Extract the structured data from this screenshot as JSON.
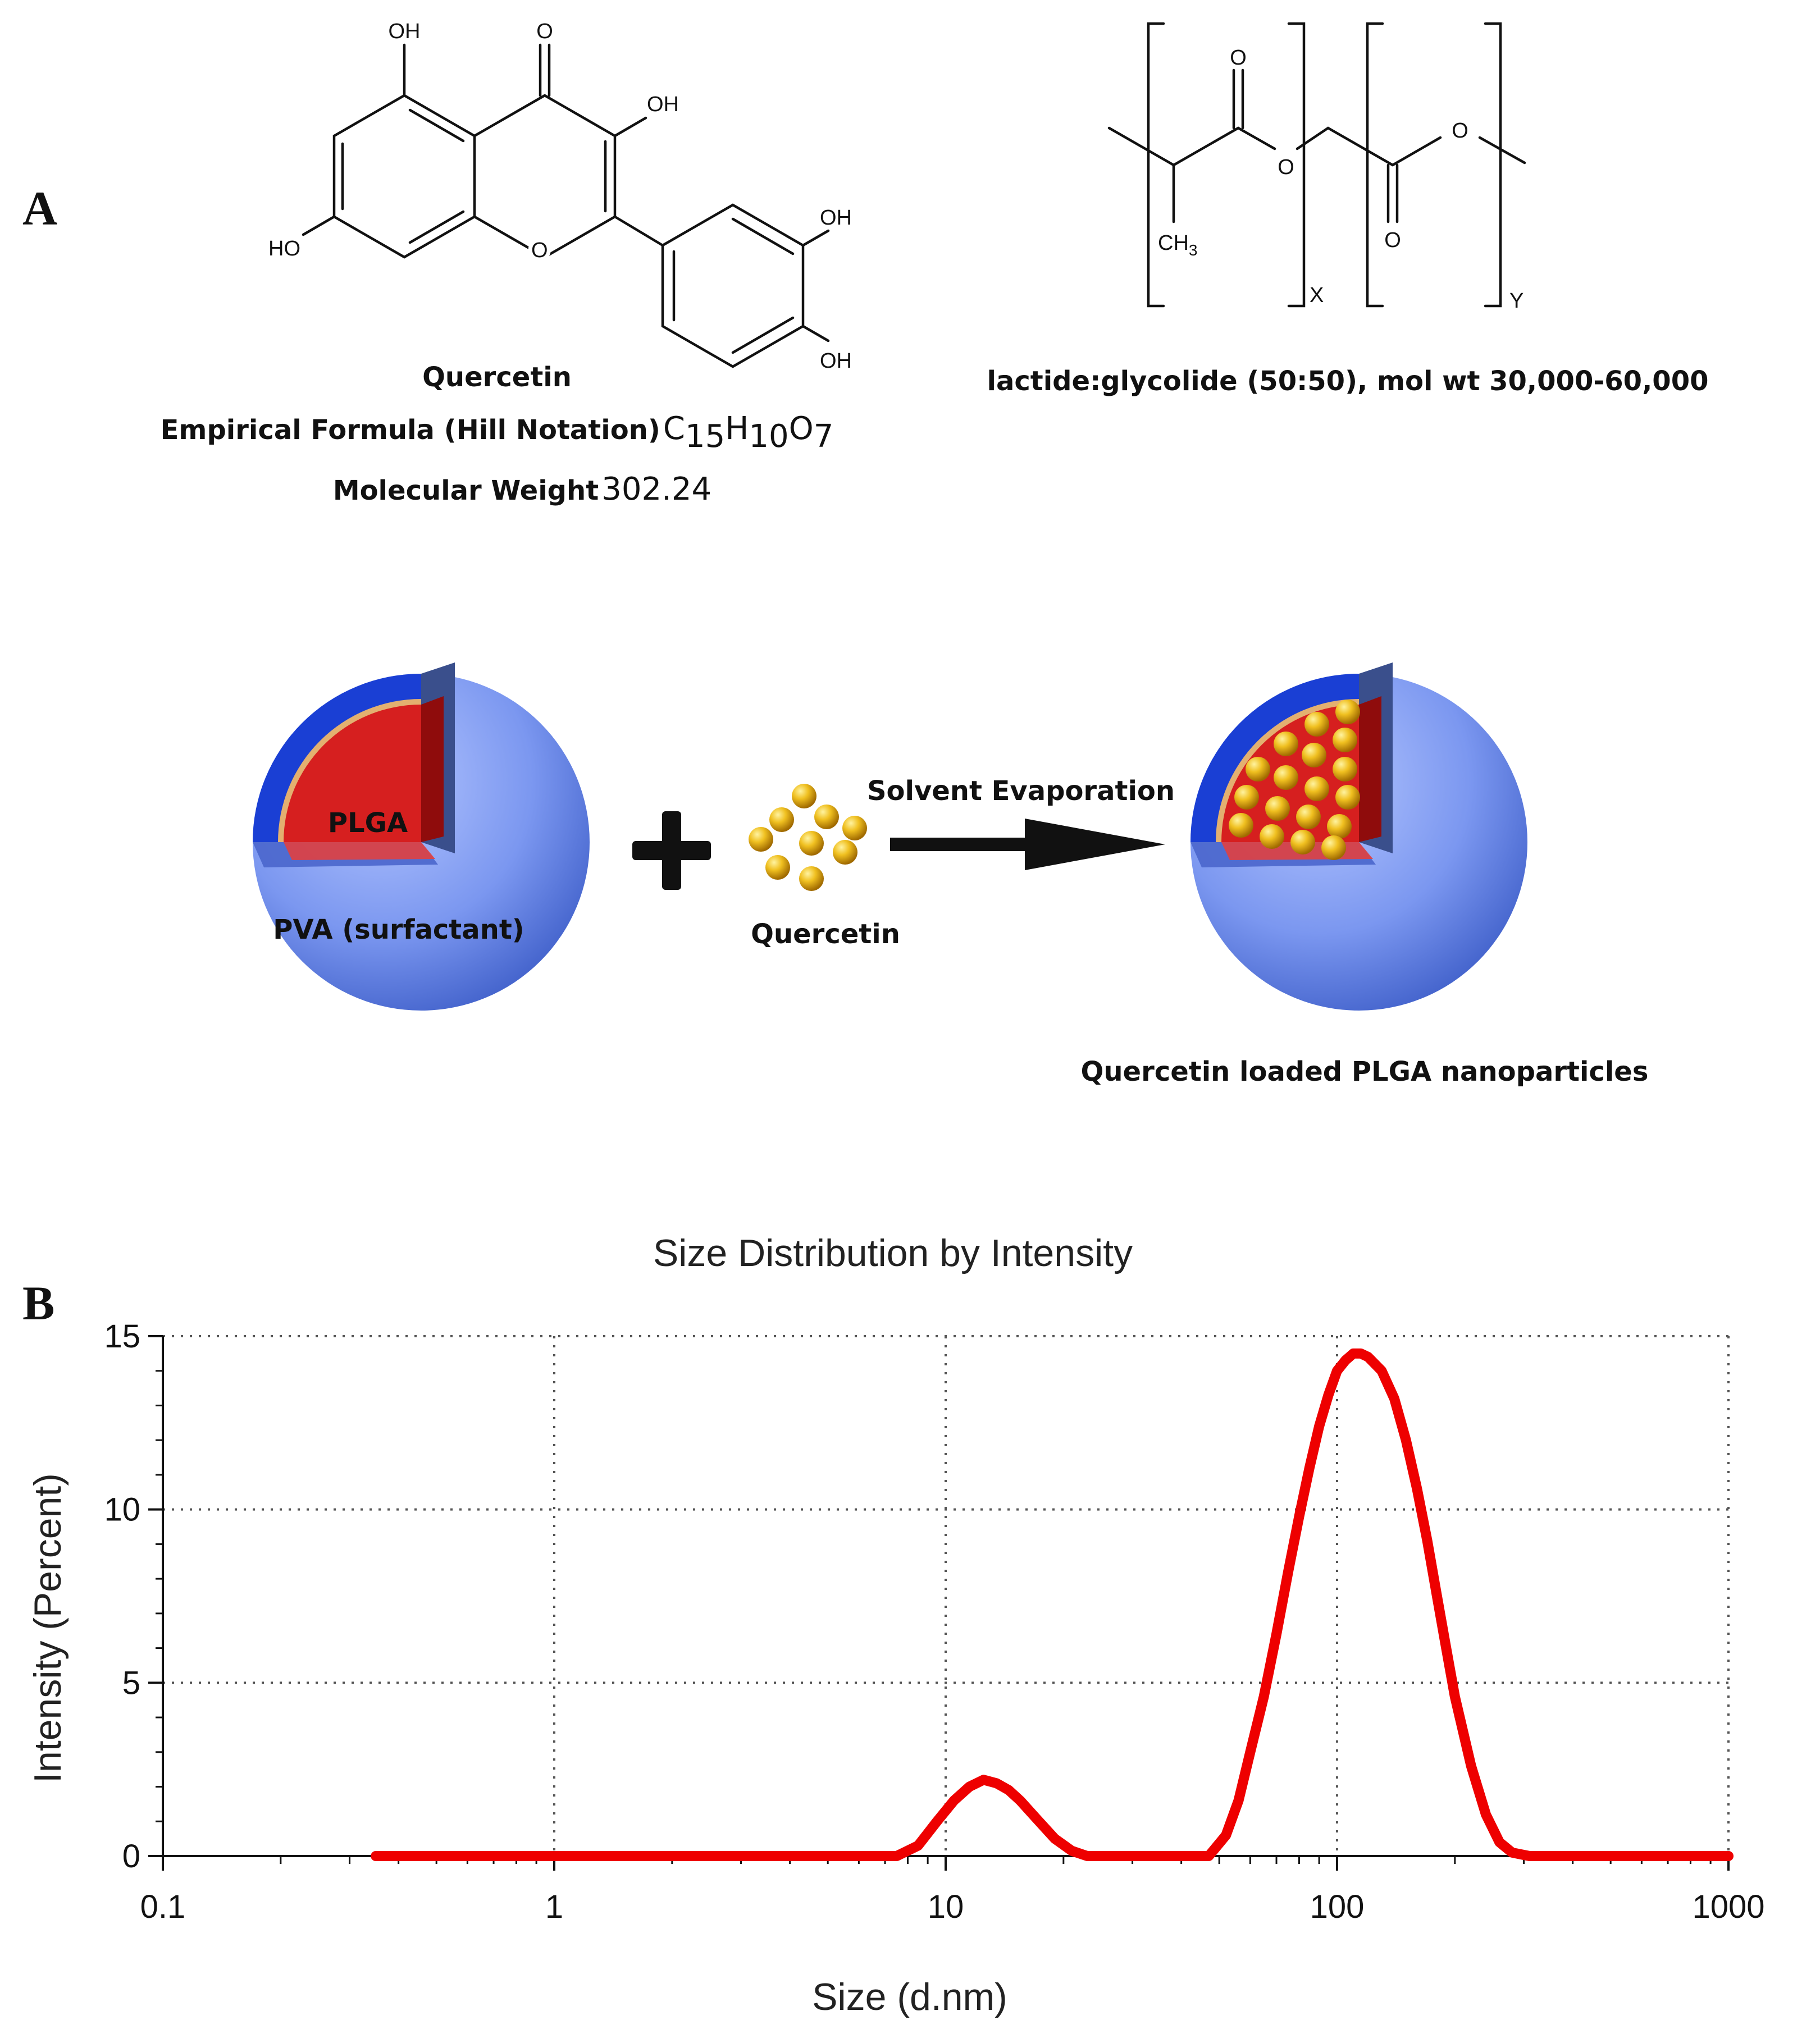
{
  "panel_a": {
    "letter": "A",
    "quercetin": {
      "atoms": {
        "oh_top": "OH",
        "o_keto": "O",
        "oh_c3": "OH",
        "ho_left": "HO",
        "o_ring": "O",
        "oh_right_top": "OH",
        "oh_right_bottom": "OH"
      },
      "name": "Quercetin",
      "formula_label": "Empirical Formula (Hill Notation)",
      "formula": {
        "c": "C",
        "c_n": "15",
        "h": "H",
        "h_n": "10",
        "o": "O",
        "o_n": "7"
      },
      "mw_label": "Molecular Weight",
      "mw_value": "302.24"
    },
    "plga": {
      "atoms": {
        "o_carbonyl_1": "O",
        "o_ester_1": "O",
        "o_carbonyl_2": "O",
        "o_ester_2": "O",
        "ch3": "CH",
        "ch3_n": "3",
        "sub_x": "X",
        "sub_y": "Y"
      },
      "caption": "lactide:glycolide (50:50), mol wt 30,000-60,000"
    },
    "scheme": {
      "core_label": "PLGA",
      "shell_label": "PVA (surfactant)",
      "drug_label": "Quercetin",
      "arrow_label": "Solvent Evaporation",
      "product_label": "Quercetin loaded PLGA nanoparticles",
      "colors": {
        "shell": "#6f8ff0",
        "shell_dark": "#1a3fd4",
        "core": "#d61f1f",
        "drug": "#e8b21a"
      }
    }
  },
  "panel_b": {
    "letter": "B",
    "chart_data": {
      "type": "line",
      "title": "Size Distribution by Intensity",
      "xlabel": "Size (d.nm)",
      "ylabel": "Intensity (Percent)",
      "x_scale": "log",
      "xlim": [
        0.1,
        1000
      ],
      "ylim": [
        0,
        15
      ],
      "x_ticks": [
        "0.1",
        "1",
        "10",
        "100",
        "1000"
      ],
      "y_ticks": [
        "0",
        "5",
        "10",
        "15"
      ],
      "grid": true,
      "line_color": "#ee0000",
      "series": [
        {
          "x": [
            0.35,
            1,
            5,
            7.5,
            8.5,
            9.5,
            10.5,
            11.5,
            12.5,
            13.5,
            14.5,
            15.5,
            17,
            19,
            21,
            23,
            30,
            40,
            47,
            52,
            56,
            60,
            65,
            70,
            75,
            80,
            85,
            90,
            95,
            100,
            105,
            110,
            115,
            120,
            130,
            140,
            150,
            160,
            170,
            180,
            190,
            200,
            220,
            240,
            260,
            280,
            310,
            400,
            1000
          ],
          "y": [
            0,
            0,
            0,
            0,
            0.3,
            1.0,
            1.6,
            2.0,
            2.2,
            2.1,
            1.9,
            1.6,
            1.1,
            0.5,
            0.15,
            0,
            0,
            0,
            0,
            0.6,
            1.6,
            3.0,
            4.6,
            6.4,
            8.2,
            9.8,
            11.2,
            12.4,
            13.3,
            14.0,
            14.3,
            14.5,
            14.5,
            14.4,
            14.0,
            13.2,
            12.0,
            10.6,
            9.1,
            7.5,
            6.0,
            4.6,
            2.6,
            1.2,
            0.4,
            0.1,
            0,
            0,
            0
          ]
        }
      ]
    }
  }
}
